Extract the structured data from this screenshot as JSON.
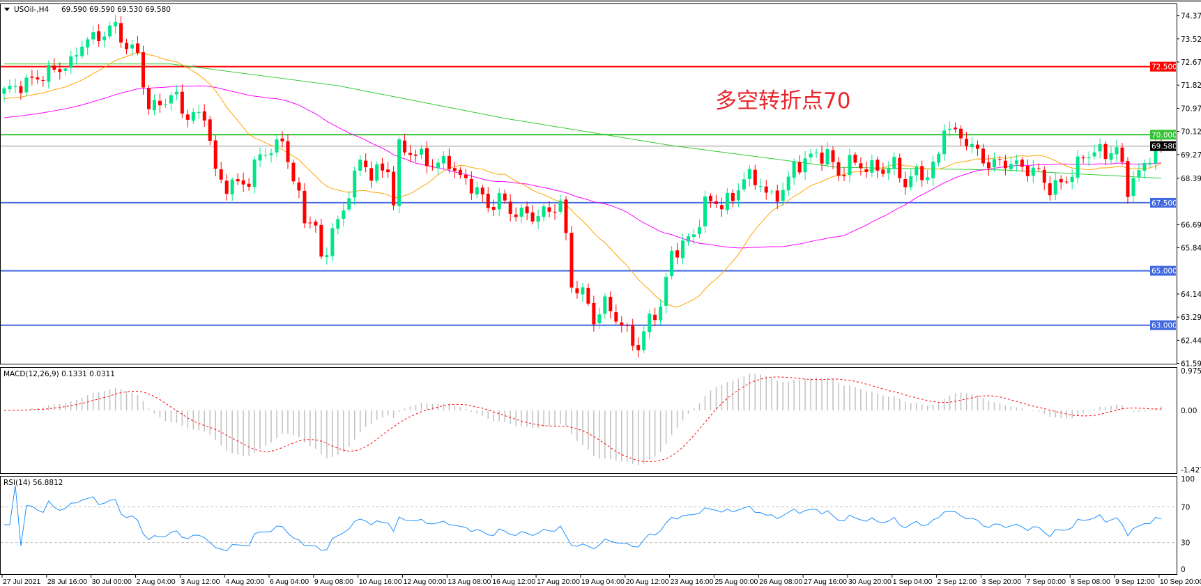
{
  "header": {
    "symbol": "USOil-,H4",
    "ohlc": "69.590 69.590 69.530 69.580"
  },
  "annotation": {
    "text": "多空转折点70",
    "color": "#e8262b"
  },
  "price_axis": {
    "ticks": [
      "74.370",
      "73.520",
      "72.670",
      "71.820",
      "70.970",
      "70.120",
      "69.270",
      "68.395",
      "66.695",
      "65.845",
      "64.145",
      "63.295",
      "62.445",
      "61.595"
    ]
  },
  "levels": [
    {
      "value": 72.5,
      "label": "72.500",
      "color": "#ff0000"
    },
    {
      "value": 70.0,
      "label": "70.000",
      "color": "#33c233"
    },
    {
      "value": 67.5,
      "label": "67.500",
      "color": "#4169e1"
    },
    {
      "value": 65.0,
      "label": "65.000",
      "color": "#4169e1"
    },
    {
      "value": 63.0,
      "label": "63.000",
      "color": "#4169e1"
    }
  ],
  "current_price": {
    "value": 69.58,
    "label": "69.580"
  },
  "macd": {
    "label": "MACD(12,26,9) 0.1331 0.0311",
    "ticks": [
      "0.9759",
      "0.00",
      "-1.427"
    ],
    "hist_color": "#c0c0c0",
    "signal_color": "#ff0000"
  },
  "rsi": {
    "label": "RSI(14) 56.8812",
    "ticks": [
      "100",
      "70",
      "30",
      "0"
    ],
    "color": "#1e90ff"
  },
  "time_axis": [
    "27 Jul 2021",
    "28 Jul 16:00",
    "30 Jul 00:00",
    "2 Aug 04:00",
    "3 Aug 12:00",
    "4 Aug 20:00",
    "6 Aug 04:00",
    "9 Aug 08:00",
    "10 Aug 16:00",
    "12 Aug 00:00",
    "13 Aug 08:00",
    "16 Aug 12:00",
    "17 Aug 20:00",
    "19 Aug 04:00",
    "20 Aug 12:00",
    "23 Aug 16:00",
    "25 Aug 00:00",
    "26 Aug 08:00",
    "27 Aug 16:00",
    "30 Aug 20:00",
    "1 Sep 04:00",
    "2 Sep 12:00",
    "3 Sep 20:00",
    "7 Sep 00:00",
    "8 Sep 08:00",
    "9 Sep 12:00",
    "10 Sep 20:00"
  ],
  "colors": {
    "bull": "#00e58a",
    "bear": "#ff0000",
    "ma_fast": "#ffa500",
    "ma_mid": "#ff00ff",
    "ma_slow": "#32cd32"
  },
  "chart_data": {
    "type": "candlestick",
    "timeframe": "H4",
    "ylim": [
      61.595,
      74.37
    ],
    "close_keypoints": [
      [
        0,
        71.6
      ],
      [
        4,
        71.9
      ],
      [
        8,
        72.3
      ],
      [
        12,
        72.6
      ],
      [
        14,
        73.4
      ],
      [
        17,
        73.6
      ],
      [
        20,
        74.0
      ],
      [
        22,
        73.2
      ],
      [
        24,
        73.0
      ],
      [
        26,
        70.9
      ],
      [
        28,
        71.2
      ],
      [
        31,
        71.4
      ],
      [
        33,
        70.6
      ],
      [
        36,
        70.8
      ],
      [
        38,
        68.6
      ],
      [
        40,
        68.1
      ],
      [
        44,
        68.3
      ],
      [
        46,
        69.3
      ],
      [
        49,
        69.5
      ],
      [
        50,
        69.9
      ],
      [
        52,
        68.3
      ],
      [
        54,
        67.0
      ],
      [
        56,
        66.6
      ],
      [
        57,
        65.3
      ],
      [
        59,
        66.5
      ],
      [
        61,
        67.1
      ],
      [
        62,
        68.0
      ],
      [
        64,
        69.0
      ],
      [
        66,
        68.6
      ],
      [
        69,
        68.7
      ],
      [
        70,
        67.6
      ],
      [
        71,
        69.5
      ],
      [
        74,
        69.3
      ],
      [
        77,
        68.9
      ],
      [
        80,
        69.0
      ],
      [
        82,
        68.4
      ],
      [
        85,
        68.0
      ],
      [
        87,
        67.3
      ],
      [
        89,
        67.7
      ],
      [
        91,
        67.2
      ],
      [
        95,
        67.0
      ],
      [
        98,
        67.2
      ],
      [
        100,
        67.5
      ],
      [
        101,
        66.2
      ],
      [
        102,
        64.5
      ],
      [
        104,
        64.2
      ],
      [
        106,
        63.2
      ],
      [
        108,
        63.8
      ],
      [
        110,
        63.3
      ],
      [
        113,
        62.4
      ],
      [
        114,
        62.2
      ],
      [
        116,
        63.2
      ],
      [
        118,
        63.7
      ],
      [
        120,
        65.6
      ],
      [
        122,
        66.0
      ],
      [
        124,
        66.3
      ],
      [
        126,
        67.5
      ],
      [
        129,
        67.5
      ],
      [
        131,
        67.6
      ],
      [
        133,
        68.5
      ],
      [
        136,
        68.2
      ],
      [
        138,
        67.6
      ],
      [
        140,
        68.0
      ],
      [
        142,
        68.8
      ],
      [
        145,
        69.2
      ],
      [
        148,
        69.3
      ],
      [
        150,
        68.5
      ],
      [
        152,
        69.0
      ],
      [
        155,
        68.8
      ],
      [
        158,
        68.7
      ],
      [
        160,
        68.9
      ],
      [
        162,
        68.2
      ],
      [
        164,
        68.6
      ],
      [
        166,
        68.5
      ],
      [
        168,
        69.2
      ],
      [
        169,
        70.4
      ],
      [
        171,
        70.0
      ],
      [
        173,
        69.8
      ],
      [
        175,
        69.3
      ],
      [
        177,
        68.9
      ],
      [
        180,
        69.0
      ],
      [
        183,
        68.8
      ],
      [
        186,
        68.6
      ],
      [
        188,
        68.0
      ],
      [
        190,
        68.2
      ],
      [
        192,
        68.6
      ],
      [
        194,
        69.2
      ],
      [
        196,
        69.4
      ],
      [
        198,
        69.3
      ],
      [
        200,
        69.5
      ],
      [
        202,
        68.0
      ],
      [
        203,
        68.4
      ],
      [
        205,
        68.8
      ],
      [
        206,
        69.3
      ],
      [
        207,
        69.6
      ],
      [
        208,
        69.58
      ]
    ],
    "slow_ma_keypoints": [
      [
        0,
        72.6
      ],
      [
        30,
        72.6
      ],
      [
        60,
        71.8
      ],
      [
        90,
        70.6
      ],
      [
        120,
        69.6
      ],
      [
        150,
        68.8
      ],
      [
        180,
        68.7
      ],
      [
        208,
        68.4
      ]
    ],
    "indicators": [
      "MACD(12,26,9)",
      "RSI(14)"
    ]
  }
}
